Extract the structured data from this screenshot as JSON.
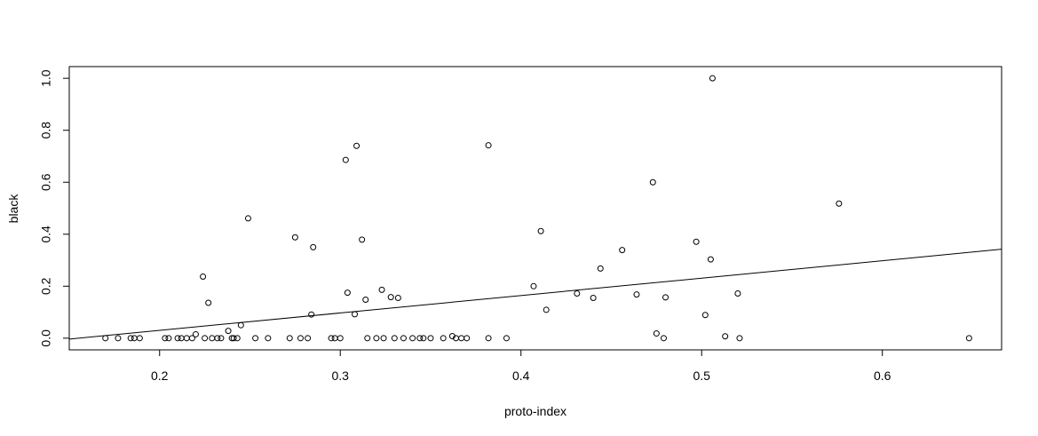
{
  "chart_data": {
    "type": "scatter",
    "xlabel": "proto-index",
    "ylabel": "black",
    "xlim": [
      0.15,
      0.666
    ],
    "ylim": [
      -0.045,
      1.045
    ],
    "x_ticks": [
      0.2,
      0.3,
      0.4,
      0.5,
      0.6
    ],
    "y_ticks": [
      0.0,
      0.2,
      0.4,
      0.6,
      0.8,
      1.0
    ],
    "x_tick_labels": [
      "0.2",
      "0.3",
      "0.4",
      "0.5",
      "0.6"
    ],
    "y_tick_labels": [
      "0.0",
      "0.2",
      "0.4",
      "0.6",
      "0.8",
      "1.0"
    ],
    "grid": false,
    "legend": "none",
    "regression_line": {
      "intercept": -0.104,
      "slope": 0.67
    },
    "points": [
      [
        0.17,
        0.0
      ],
      [
        0.177,
        0.0
      ],
      [
        0.184,
        0.0
      ],
      [
        0.186,
        0.0
      ],
      [
        0.189,
        0.0
      ],
      [
        0.203,
        0.0
      ],
      [
        0.205,
        0.0
      ],
      [
        0.21,
        0.0
      ],
      [
        0.212,
        0.0
      ],
      [
        0.215,
        0.0
      ],
      [
        0.218,
        0.0
      ],
      [
        0.22,
        0.015
      ],
      [
        0.224,
        0.237
      ],
      [
        0.225,
        0.0
      ],
      [
        0.227,
        0.136
      ],
      [
        0.229,
        0.0
      ],
      [
        0.232,
        0.0
      ],
      [
        0.234,
        0.0
      ],
      [
        0.238,
        0.028
      ],
      [
        0.24,
        0.0
      ],
      [
        0.241,
        0.0
      ],
      [
        0.243,
        0.0
      ],
      [
        0.245,
        0.05
      ],
      [
        0.249,
        0.461
      ],
      [
        0.253,
        0.0
      ],
      [
        0.26,
        0.0
      ],
      [
        0.272,
        0.0
      ],
      [
        0.275,
        0.388
      ],
      [
        0.278,
        0.0
      ],
      [
        0.282,
        0.0
      ],
      [
        0.284,
        0.091
      ],
      [
        0.285,
        0.35
      ],
      [
        0.295,
        0.0
      ],
      [
        0.297,
        0.0
      ],
      [
        0.3,
        0.0
      ],
      [
        0.303,
        0.686
      ],
      [
        0.304,
        0.175
      ],
      [
        0.308,
        0.092
      ],
      [
        0.309,
        0.74
      ],
      [
        0.312,
        0.379
      ],
      [
        0.314,
        0.148
      ],
      [
        0.315,
        0.0
      ],
      [
        0.32,
        0.0
      ],
      [
        0.323,
        0.186
      ],
      [
        0.324,
        0.0
      ],
      [
        0.328,
        0.158
      ],
      [
        0.33,
        0.0
      ],
      [
        0.332,
        0.155
      ],
      [
        0.335,
        0.0
      ],
      [
        0.34,
        0.0
      ],
      [
        0.344,
        0.0
      ],
      [
        0.346,
        0.0
      ],
      [
        0.35,
        0.0
      ],
      [
        0.357,
        0.0
      ],
      [
        0.362,
        0.008
      ],
      [
        0.364,
        0.0
      ],
      [
        0.367,
        0.0
      ],
      [
        0.37,
        0.0
      ],
      [
        0.382,
        0.742
      ],
      [
        0.382,
        0.0
      ],
      [
        0.392,
        0.0
      ],
      [
        0.407,
        0.2
      ],
      [
        0.411,
        0.412
      ],
      [
        0.414,
        0.109
      ],
      [
        0.431,
        0.172
      ],
      [
        0.44,
        0.155
      ],
      [
        0.444,
        0.268
      ],
      [
        0.456,
        0.339
      ],
      [
        0.464,
        0.168
      ],
      [
        0.473,
        0.6
      ],
      [
        0.475,
        0.018
      ],
      [
        0.479,
        0.0
      ],
      [
        0.48,
        0.157
      ],
      [
        0.497,
        0.371
      ],
      [
        0.502,
        0.089
      ],
      [
        0.505,
        0.303
      ],
      [
        0.506,
        1.0
      ],
      [
        0.513,
        0.007
      ],
      [
        0.52,
        0.172
      ],
      [
        0.521,
        0.0
      ],
      [
        0.576,
        0.518
      ],
      [
        0.648,
        0.0
      ]
    ]
  }
}
